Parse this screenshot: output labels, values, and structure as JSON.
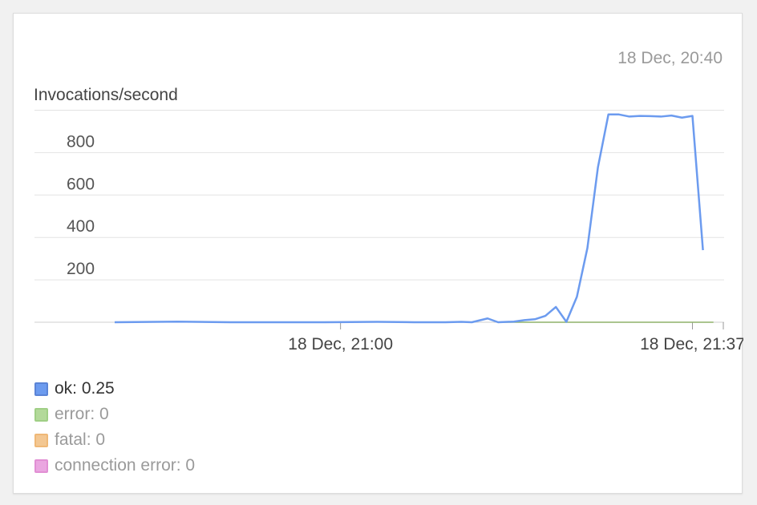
{
  "header": {
    "timestamp": "18 Dec, 20:40"
  },
  "chart_data": {
    "type": "line",
    "ylabel": "Invocations/second",
    "yticks": [
      "200",
      "400",
      "600",
      "800"
    ],
    "ylim": [
      0,
      1000
    ],
    "xticks": [
      "18 Dec, 21:00",
      "18 Dec, 21:37"
    ],
    "grid": true,
    "legend_position": "bottom-left",
    "series": [
      {
        "name": "ok",
        "color": "#6c9bef",
        "x_minutes_from_start": [
          0,
          12,
          22,
          26,
          33,
          40,
          50,
          57,
          60,
          63,
          66,
          68,
          71,
          73,
          76,
          78,
          80,
          82,
          84,
          86,
          88,
          90,
          92,
          94,
          96,
          98,
          100,
          102,
          104,
          106,
          108,
          110,
          112
        ],
        "values": [
          0,
          3,
          0,
          0,
          0,
          0,
          2,
          0,
          0,
          0,
          2,
          0,
          18,
          0,
          3,
          10,
          14,
          30,
          72,
          2,
          120,
          350,
          730,
          980,
          980,
          970,
          973,
          972,
          970,
          975,
          965,
          973,
          340
        ]
      },
      {
        "name": "error",
        "color": "#b3d99a",
        "values": [
          0,
          0
        ]
      },
      {
        "name": "fatal",
        "color": "#f3c792",
        "values": [
          0,
          0
        ]
      },
      {
        "name": "connection error",
        "color": "#eaa6e0",
        "values": [
          0,
          0
        ]
      }
    ]
  },
  "legend": {
    "ok": "ok: 0.25",
    "error": "error: 0",
    "fatal": "fatal: 0",
    "connection_error": "connection error: 0"
  }
}
